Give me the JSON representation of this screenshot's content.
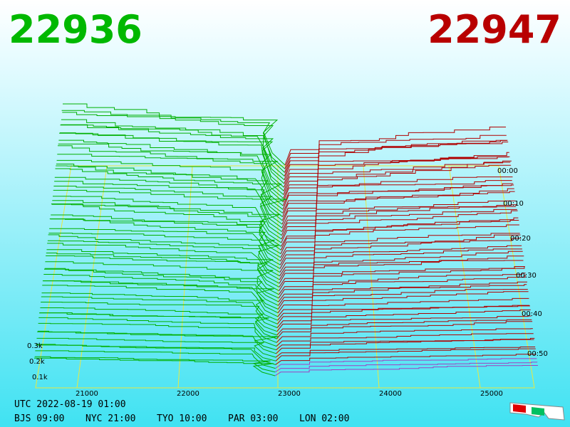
{
  "header": {
    "bid": "22936",
    "ask": "22947"
  },
  "x_axis": {
    "labels": [
      "21000",
      "22000",
      "23000",
      "24000",
      "25000"
    ]
  },
  "depth_axis": {
    "labels": [
      "0.3k",
      "0.2k",
      "0.1k"
    ]
  },
  "time_axis": {
    "labels": [
      "00:00",
      "00:10",
      "00:20",
      "00:30",
      "00:40",
      "00:50"
    ]
  },
  "footer": {
    "utc": "UTC 2022-08-19 01:00",
    "zones": [
      "BJS 09:00",
      "NYC 21:00",
      "TYO 10:00",
      "PAR 03:00",
      "LON 02:00"
    ]
  }
}
